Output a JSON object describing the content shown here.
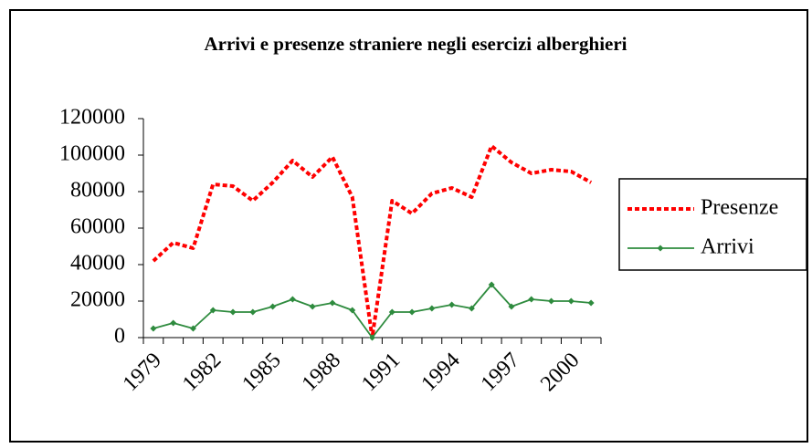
{
  "chart_data": {
    "type": "line",
    "title": "Arrivi e presenze straniere negli esercizi alberghieri",
    "categories": [
      "1979",
      null,
      null,
      "1982",
      null,
      null,
      "1985",
      null,
      null,
      "1988",
      null,
      null,
      "1991",
      null,
      null,
      "1994",
      null,
      null,
      "1997",
      null,
      null,
      "2000",
      null
    ],
    "series": [
      {
        "name": "Presenze",
        "color": "#ff0000",
        "values": [
          42000,
          52000,
          49000,
          84000,
          83000,
          75000,
          85000,
          97000,
          88000,
          99000,
          77000,
          0,
          75000,
          68000,
          79000,
          82000,
          77000,
          105000,
          96000,
          90000,
          92000,
          91000,
          85000
        ]
      },
      {
        "name": "Arrivi",
        "color": "#2e8b3e",
        "values": [
          5000,
          8000,
          5000,
          15000,
          14000,
          14000,
          17000,
          21000,
          17000,
          19000,
          15000,
          0,
          14000,
          14000,
          16000,
          18000,
          16000,
          29000,
          17000,
          21000,
          20000,
          20000,
          19000
        ]
      }
    ],
    "ylim": [
      0,
      120000
    ],
    "yticks": [
      0,
      20000,
      40000,
      60000,
      80000,
      100000,
      120000
    ],
    "legend": "right"
  }
}
